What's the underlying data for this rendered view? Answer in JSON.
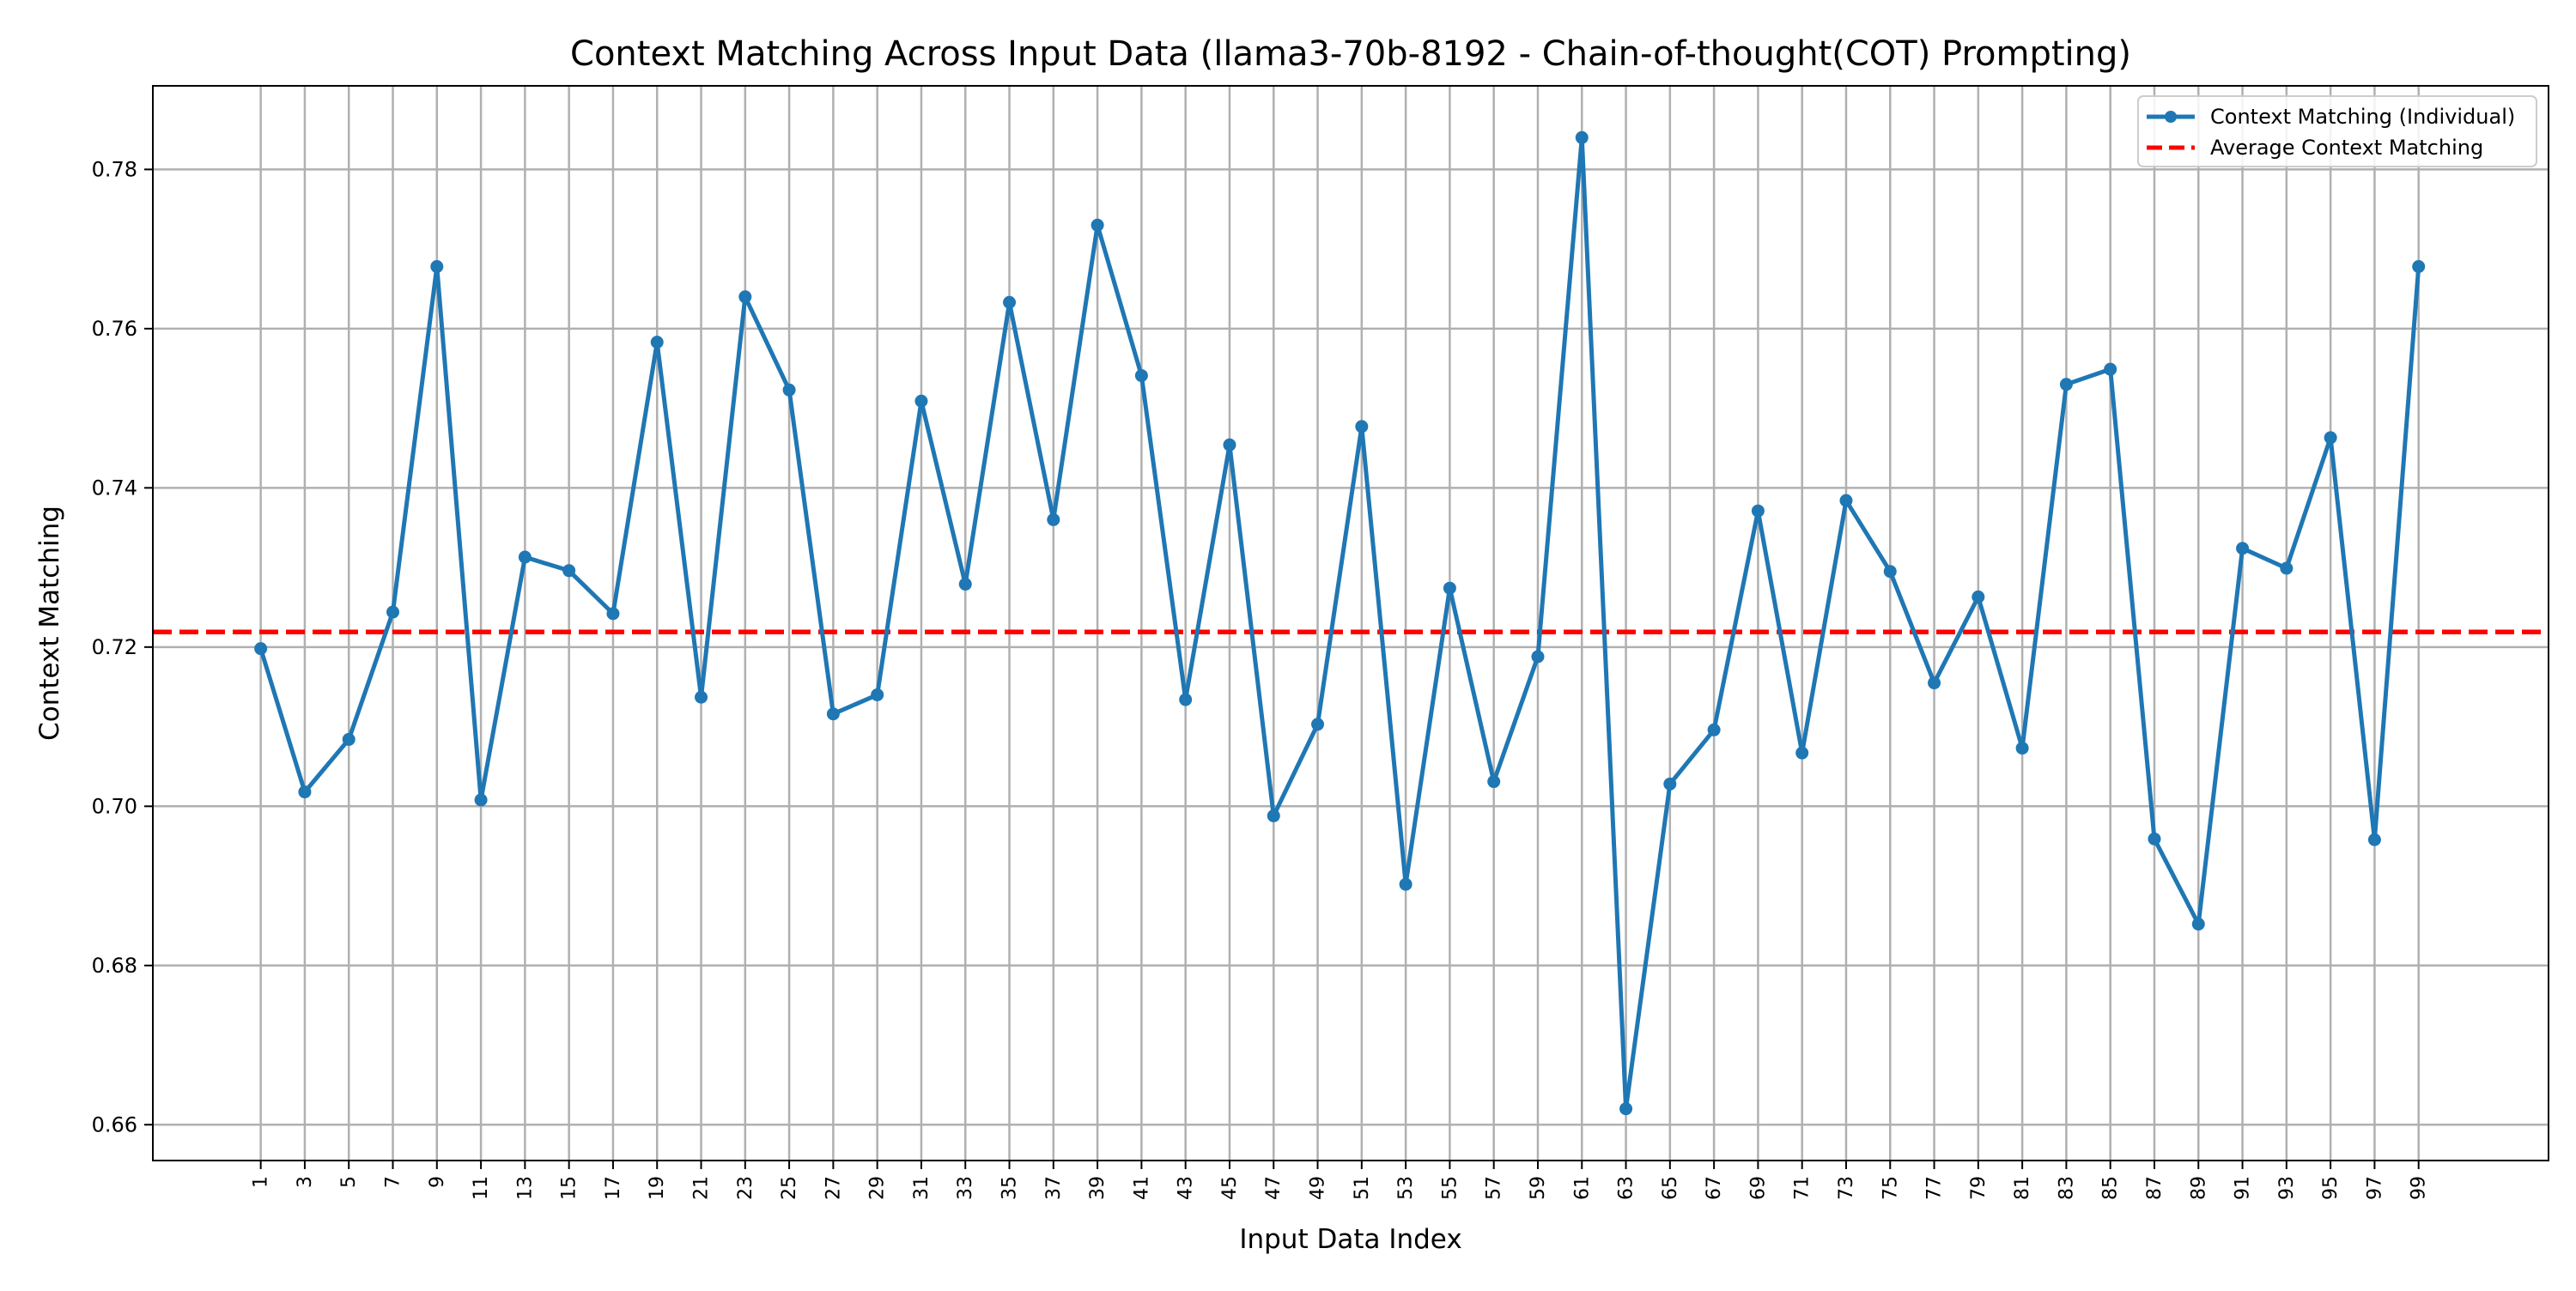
{
  "chart_data": {
    "type": "line",
    "title": "Context Matching Across Input Data (llama3-70b-8192 - Chain-of-thought(COT) Prompting)",
    "xlabel": "Input Data Index",
    "ylabel": "Context Matching",
    "x": [
      1,
      3,
      5,
      7,
      9,
      11,
      13,
      15,
      17,
      19,
      21,
      23,
      25,
      27,
      29,
      31,
      33,
      35,
      37,
      39,
      41,
      43,
      45,
      47,
      49,
      51,
      53,
      55,
      57,
      59,
      61,
      63,
      65,
      67,
      69,
      71,
      73,
      75,
      77,
      79,
      81,
      83,
      85,
      87,
      89,
      91,
      93,
      95,
      97,
      99
    ],
    "xticks": [
      "1",
      "3",
      "5",
      "7",
      "9",
      "11",
      "13",
      "15",
      "17",
      "19",
      "21",
      "23",
      "25",
      "27",
      "29",
      "31",
      "33",
      "35",
      "37",
      "39",
      "41",
      "43",
      "45",
      "47",
      "49",
      "51",
      "53",
      "55",
      "57",
      "59",
      "61",
      "63",
      "65",
      "67",
      "69",
      "71",
      "73",
      "75",
      "77",
      "79",
      "81",
      "83",
      "85",
      "87",
      "89",
      "91",
      "93",
      "95",
      "97",
      "99"
    ],
    "yticks": [
      "0.66",
      "0.68",
      "0.70",
      "0.72",
      "0.74",
      "0.76",
      "0.78"
    ],
    "ytick_values": [
      0.66,
      0.68,
      0.7,
      0.72,
      0.74,
      0.76,
      0.78
    ],
    "xlim": [
      -3.9,
      104.9
    ],
    "ylim": [
      0.6555,
      0.7905
    ],
    "grid": true,
    "legend_position": "top-right",
    "series": [
      {
        "name": "Context Matching (Individual)",
        "color": "#1f77b4",
        "style": "solid-with-markers",
        "values": [
          0.7198,
          0.7018,
          0.7084,
          0.7244,
          0.7678,
          0.7008,
          0.7313,
          0.7296,
          0.7242,
          0.7583,
          0.7137,
          0.764,
          0.7523,
          0.7116,
          0.714,
          0.7509,
          0.7279,
          0.7633,
          0.736,
          0.773,
          0.7541,
          0.7134,
          0.7454,
          0.6988,
          0.7103,
          0.7477,
          0.6902,
          0.7274,
          0.7031,
          0.7188,
          0.784,
          0.662,
          0.7028,
          0.7096,
          0.7371,
          0.7067,
          0.7384,
          0.7295,
          0.7155,
          0.7263,
          0.7073,
          0.753,
          0.7549,
          0.6959,
          0.6852,
          0.7324,
          0.7299,
          0.7463,
          0.6958,
          0.7678
        ]
      },
      {
        "name": "Average Context Matching",
        "color": "#ff0000",
        "style": "dashed",
        "value": 0.7219
      }
    ]
  }
}
